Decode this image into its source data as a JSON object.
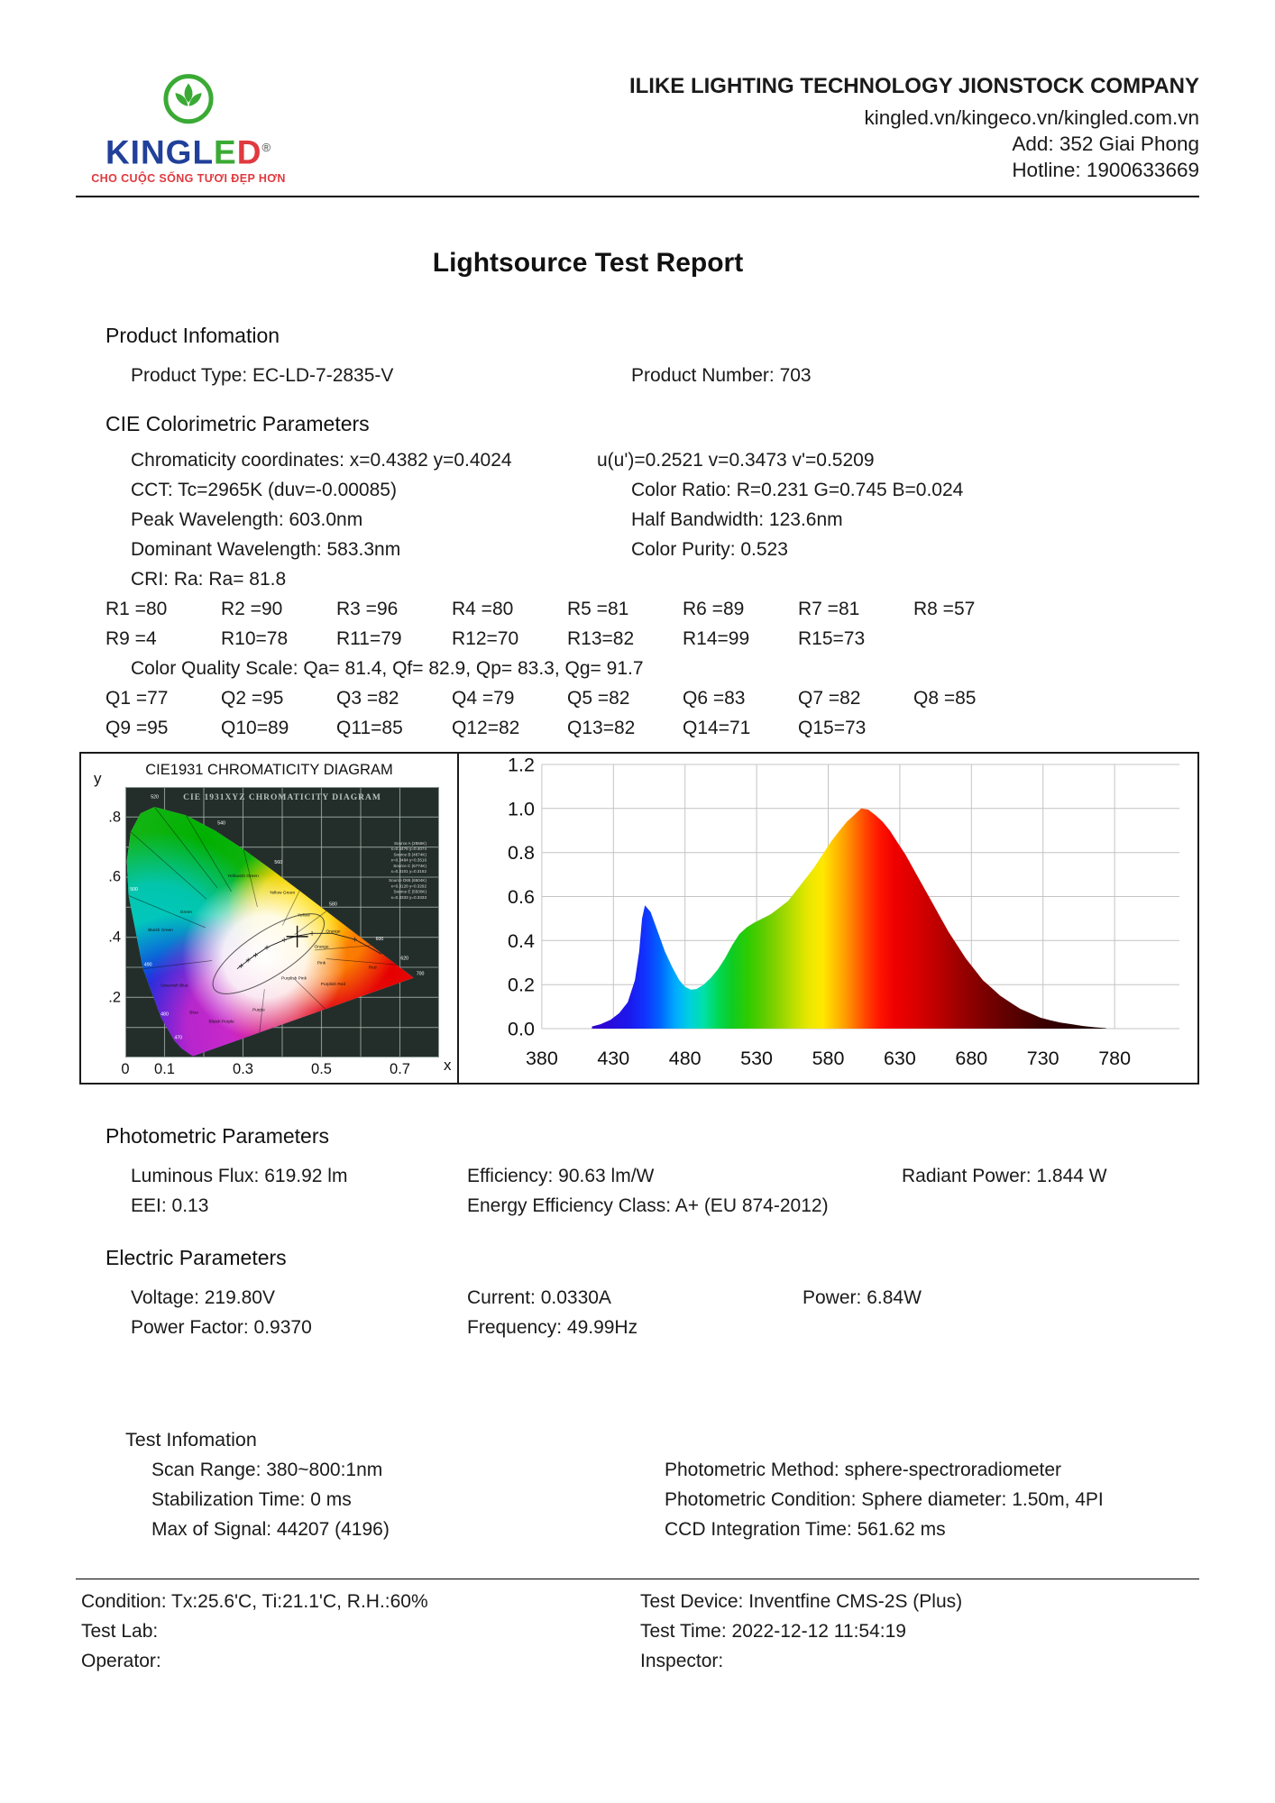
{
  "header": {
    "logo": {
      "text_primary": "KINGL",
      "text_e": "E",
      "text_d": "D",
      "registered": "®",
      "tagline": "CHO CUỘC SỐNG TƯƠI ĐẸP HƠN",
      "brand_blue": "#21409a",
      "brand_green": "#3aaa35",
      "brand_red": "#e0393e"
    },
    "company": "ILIKE LIGHTING TECHNOLOGY JIONSTOCK COMPANY",
    "website": "kingled.vn/kingeco.vn/kingled.com.vn",
    "address": "Add: 352 Giai Phong",
    "hotline": "Hotline: 1900633669"
  },
  "title": "Lightsource Test Report",
  "product_information": {
    "heading": "Product Infomation",
    "product_type": "Product Type: EC-LD-7-2835-V",
    "product_number": "Product Number: 703"
  },
  "cie_section": {
    "heading": "CIE Colorimetric Parameters",
    "chromaticity": "Chromaticity coordinates: x=0.4382 y=0.4024",
    "uv": "u(u')=0.2521 v=0.3473 v'=0.5209",
    "cct": "CCT: Tc=2965K (duv=-0.00085)",
    "color_ratio": "Color Ratio: R=0.231  G=0.745  B=0.024",
    "peak_wavelength": "Peak Wavelength: 603.0nm",
    "half_bandwidth": "Half Bandwidth: 123.6nm",
    "dominant_wavelength": "Dominant Wavelength: 583.3nm",
    "color_purity": "Color Purity: 0.523",
    "cri": "CRI: Ra: Ra= 81.8",
    "r_row1": [
      "R1 =80",
      "R2 =90",
      "R3 =96",
      "R4 =80",
      "R5 =81",
      "R6 =89",
      "R7 =81",
      "R8 =57"
    ],
    "r_row2": [
      "R9 =4",
      "R10=78",
      "R11=79",
      "R12=70",
      "R13=82",
      "R14=99",
      "R15=73"
    ],
    "cqs": "Color Quality Scale: Qa= 81.4, Qf= 82.9, Qp= 83.3, Qg= 91.7",
    "q_row1": [
      "Q1 =77",
      "Q2 =95",
      "Q3 =82",
      "Q4 =79",
      "Q5 =82",
      "Q6 =83",
      "Q7 =82",
      "Q8 =85"
    ],
    "q_row2": [
      "Q9 =95",
      "Q10=89",
      "Q11=85",
      "Q12=82",
      "Q13=82",
      "Q14=71",
      "Q15=73"
    ]
  },
  "chart_data": [
    {
      "type": "chromaticity",
      "title": "CIE1931 CHROMATICITY DIAGRAM",
      "inner_title": "CIE 1931XYZ CHROMATICITY DIAGRAM",
      "x_axis_label": "x",
      "y_axis_label": "y",
      "xlim": [
        0,
        0.8
      ],
      "ylim": [
        0,
        0.9
      ],
      "x_ticks": [
        {
          "label": "0",
          "value": 0
        },
        {
          "label": "0.1",
          "value": 0.1
        },
        {
          "label": "0.3",
          "value": 0.3
        },
        {
          "label": "0.5",
          "value": 0.5
        },
        {
          "label": "0.7",
          "value": 0.7
        }
      ],
      "y_ticks": [
        {
          "label": ".8",
          "value": 0.8
        },
        {
          "label": ".6",
          "value": 0.6
        },
        {
          "label": ".4",
          "value": 0.4
        },
        {
          "label": ".2",
          "value": 0.2
        }
      ],
      "point": {
        "x": 0.4382,
        "y": 0.4024
      },
      "background": "#232e2a",
      "grid_color": "#a8b4ae",
      "region_labels": [
        {
          "t": "Green",
          "x": 0.155,
          "y": 0.48
        },
        {
          "t": "Yellowish Green",
          "x": 0.3,
          "y": 0.6
        },
        {
          "t": "Yellow Green",
          "x": 0.4,
          "y": 0.545
        },
        {
          "t": "Yellow",
          "x": 0.455,
          "y": 0.47
        },
        {
          "t": "Orange",
          "x": 0.53,
          "y": 0.415
        },
        {
          "t": "Orange",
          "x": 0.5,
          "y": 0.365
        },
        {
          "t": "Red",
          "x": 0.63,
          "y": 0.295
        },
        {
          "t": "Pink",
          "x": 0.5,
          "y": 0.31
        },
        {
          "t": "Purplish Pink",
          "x": 0.43,
          "y": 0.26
        },
        {
          "t": "Purplish Red",
          "x": 0.53,
          "y": 0.24
        },
        {
          "t": "Purple",
          "x": 0.34,
          "y": 0.155
        },
        {
          "t": "Bluish Purple",
          "x": 0.245,
          "y": 0.115
        },
        {
          "t": "Blue",
          "x": 0.175,
          "y": 0.145
        },
        {
          "t": "Greenish Blue",
          "x": 0.125,
          "y": 0.235
        },
        {
          "t": "Bluish Green",
          "x": 0.09,
          "y": 0.42
        }
      ],
      "wavelength_labels": [
        {
          "t": "520",
          "x": 0.075,
          "y": 0.862
        },
        {
          "t": "540",
          "x": 0.245,
          "y": 0.775
        },
        {
          "t": "560",
          "x": 0.39,
          "y": 0.645
        },
        {
          "t": "580",
          "x": 0.53,
          "y": 0.505
        },
        {
          "t": "600",
          "x": 0.648,
          "y": 0.39
        },
        {
          "t": "620",
          "x": 0.712,
          "y": 0.325
        },
        {
          "t": "700",
          "x": 0.752,
          "y": 0.275
        },
        {
          "t": "500",
          "x": 0.022,
          "y": 0.555
        },
        {
          "t": "490",
          "x": 0.058,
          "y": 0.305
        },
        {
          "t": "480",
          "x": 0.1,
          "y": 0.14
        },
        {
          "t": "470",
          "x": 0.135,
          "y": 0.062
        }
      ],
      "source_legend": [
        "Source A (2856K)",
        "x=0.4476 y=0.4074",
        "Source B (4874K)",
        "x=0.3484 y=0.3516",
        "Source C (6774K)",
        "x=0.3101 y=0.3162",
        "Source D65 (6504K)",
        "x=0.3128 y=0.3292",
        "Source E (5500K)",
        "x=0.3333 y=0.3333"
      ]
    },
    {
      "type": "area",
      "title": "",
      "xlabel": "",
      "ylabel": "",
      "xlim": [
        380,
        780
      ],
      "ylim": [
        0,
        1.2
      ],
      "x_ticks": [
        380,
        430,
        480,
        530,
        580,
        630,
        680,
        730,
        780
      ],
      "y_ticks": [
        "0.0",
        "0.2",
        "0.4",
        "0.6",
        "0.8",
        "1.0",
        "1.2"
      ],
      "grid": true,
      "grid_color": "#c4c4c4",
      "x": [
        415,
        421,
        428,
        434,
        440,
        445,
        448,
        450,
        452,
        456,
        461,
        466,
        471,
        476,
        480,
        484,
        488,
        493,
        498,
        503,
        508,
        513,
        518,
        523,
        528,
        534,
        540,
        546,
        552,
        558,
        564,
        570,
        576,
        582,
        588,
        593,
        598,
        603,
        608,
        613,
        618,
        623,
        628,
        634,
        640,
        646,
        652,
        658,
        664,
        670,
        676,
        682,
        688,
        694,
        700,
        707,
        714,
        721,
        728,
        735,
        742,
        750,
        758,
        766,
        774
      ],
      "y": [
        0.01,
        0.02,
        0.04,
        0.07,
        0.12,
        0.22,
        0.35,
        0.5,
        0.56,
        0.53,
        0.44,
        0.35,
        0.28,
        0.22,
        0.19,
        0.177,
        0.18,
        0.2,
        0.23,
        0.27,
        0.32,
        0.38,
        0.43,
        0.46,
        0.48,
        0.5,
        0.52,
        0.55,
        0.58,
        0.63,
        0.68,
        0.73,
        0.79,
        0.85,
        0.9,
        0.94,
        0.97,
        1.0,
        0.995,
        0.97,
        0.94,
        0.9,
        0.85,
        0.79,
        0.72,
        0.65,
        0.58,
        0.51,
        0.44,
        0.38,
        0.32,
        0.27,
        0.22,
        0.185,
        0.15,
        0.12,
        0.09,
        0.07,
        0.05,
        0.038,
        0.028,
        0.02,
        0.012,
        0.006,
        0.002
      ],
      "spectral_colors": [
        [
          415,
          "#3300cc"
        ],
        [
          442,
          "#1a1aee"
        ],
        [
          452,
          "#1133ff"
        ],
        [
          463,
          "#0066ff"
        ],
        [
          473,
          "#00aaff"
        ],
        [
          483,
          "#00d0e0"
        ],
        [
          493,
          "#00e0a8"
        ],
        [
          503,
          "#00d855"
        ],
        [
          513,
          "#0fcc22"
        ],
        [
          524,
          "#2ecc00"
        ],
        [
          535,
          "#5ecc00"
        ],
        [
          546,
          "#90d400"
        ],
        [
          557,
          "#c2e000"
        ],
        [
          567,
          "#ebe800"
        ],
        [
          576,
          "#ffe800"
        ],
        [
          584,
          "#ffc400"
        ],
        [
          592,
          "#ff9c00"
        ],
        [
          600,
          "#ff6a00"
        ],
        [
          608,
          "#ff3a00"
        ],
        [
          616,
          "#ff1400"
        ],
        [
          626,
          "#f00000"
        ],
        [
          640,
          "#dc0000"
        ],
        [
          655,
          "#c00000"
        ],
        [
          670,
          "#a00000"
        ],
        [
          685,
          "#840000"
        ],
        [
          700,
          "#680000"
        ],
        [
          715,
          "#500000"
        ],
        [
          730,
          "#3c0000"
        ],
        [
          745,
          "#2c0000"
        ],
        [
          760,
          "#200000"
        ],
        [
          775,
          "#180000"
        ]
      ]
    }
  ],
  "photometric": {
    "heading": "Photometric Parameters",
    "luminous_flux": "Luminous Flux: 619.92 lm",
    "efficiency": "Efficiency: 90.63 lm/W",
    "radiant_power": "Radiant Power: 1.844 W",
    "eei": "EEI:  0.13",
    "energy_class": "Energy Efficiency Class: A+ (EU 874-2012)"
  },
  "electric": {
    "heading": "Electric Parameters",
    "voltage": "Voltage: 219.80V",
    "current": "Current: 0.0330A",
    "power": "Power: 6.84W",
    "power_factor": "Power Factor: 0.9370",
    "frequency": "Frequency: 49.99Hz"
  },
  "test_information": {
    "heading": "Test Infomation",
    "scan_range": "Scan Range: 380~800:1nm",
    "stabilization_time": "Stabilization Time: 0 ms",
    "max_signal": "Max of Signal: 44207 (4196)",
    "photometric_method": "Photometric Method: sphere-spectroradiometer",
    "photometric_condition": "Photometric Condition: Sphere diameter: 1.50m, 4PI",
    "ccd_integration": "CCD Integration Time: 561.62 ms"
  },
  "footer": {
    "condition": "Condition: Tx:25.6'C, Ti:21.1'C, R.H.:60%",
    "test_device": "Test Device: Inventfine CMS-2S (Plus)",
    "test_lab": "Test Lab:",
    "test_time": "Test Time: 2022-12-12 11:54:19",
    "operator": "Operator:",
    "inspector": "Inspector:"
  }
}
